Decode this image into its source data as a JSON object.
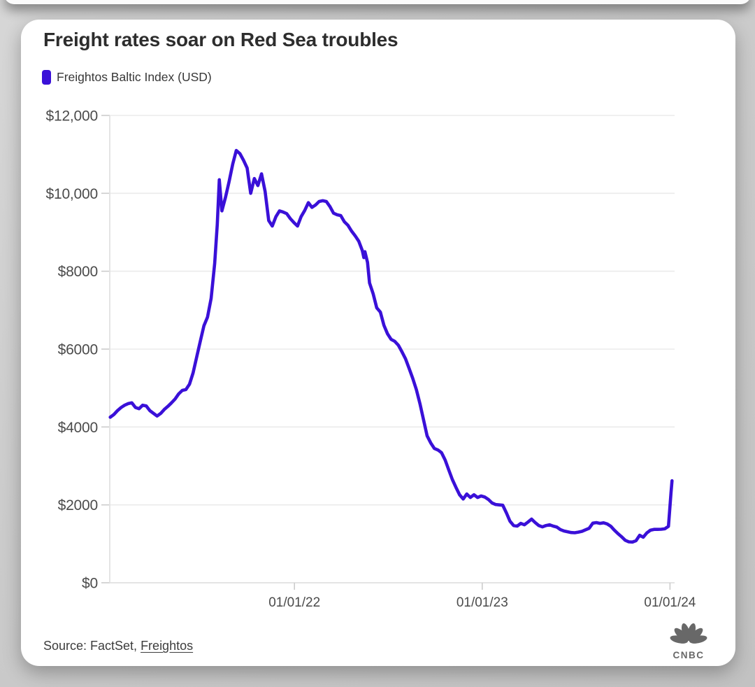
{
  "colors": {
    "accent": "#3A10D8",
    "grid": "#ebebeb",
    "axis": "#e2e2e2",
    "tick_label": "#4b4b4b",
    "title": "#2d2d2d"
  },
  "card": {
    "title": "Freight rates soar on Red Sea troubles",
    "legend": {
      "label": "Freightos Baltic Index (USD)",
      "swatch_color": "#3A10D8"
    },
    "source": {
      "text": "Source: FactSet, ",
      "link_label": "Freightos"
    },
    "logo_text": "CNBC"
  },
  "chart_data": {
    "type": "line",
    "title": "Freight rates soar on Red Sea troubles",
    "series_name": "Freightos Baltic Index (USD)",
    "line_color": "#3A10D8",
    "xlabel": "",
    "ylabel": "",
    "grid": true,
    "legend_position": "top-left",
    "ylim": [
      0,
      12000
    ],
    "x_domain": [
      "2021-01-07",
      "2024-01-10"
    ],
    "y_ticks": [
      {
        "value": 12000,
        "label": "$12,000"
      },
      {
        "value": 10000,
        "label": "$10,000"
      },
      {
        "value": 8000,
        "label": "$8000"
      },
      {
        "value": 6000,
        "label": "$6000"
      },
      {
        "value": 4000,
        "label": "$4000"
      },
      {
        "value": 2000,
        "label": "$2000"
      },
      {
        "value": 0,
        "label": "$0"
      }
    ],
    "x_ticks": [
      {
        "date": "2022-01-01",
        "label": "01/01/22"
      },
      {
        "date": "2023-01-01",
        "label": "01/01/23"
      },
      {
        "date": "2024-01-01",
        "label": "01/01/24"
      }
    ],
    "points": [
      [
        "2021-01-08",
        4250
      ],
      [
        "2021-01-15",
        4320
      ],
      [
        "2021-01-22",
        4420
      ],
      [
        "2021-01-29",
        4500
      ],
      [
        "2021-02-05",
        4560
      ],
      [
        "2021-02-12",
        4600
      ],
      [
        "2021-02-19",
        4620
      ],
      [
        "2021-02-26",
        4500
      ],
      [
        "2021-03-05",
        4470
      ],
      [
        "2021-03-12",
        4560
      ],
      [
        "2021-03-19",
        4540
      ],
      [
        "2021-03-26",
        4420
      ],
      [
        "2021-04-02",
        4350
      ],
      [
        "2021-04-09",
        4280
      ],
      [
        "2021-04-16",
        4350
      ],
      [
        "2021-04-23",
        4450
      ],
      [
        "2021-04-30",
        4530
      ],
      [
        "2021-05-07",
        4620
      ],
      [
        "2021-05-14",
        4720
      ],
      [
        "2021-05-21",
        4850
      ],
      [
        "2021-05-28",
        4940
      ],
      [
        "2021-06-04",
        4960
      ],
      [
        "2021-06-11",
        5100
      ],
      [
        "2021-06-18",
        5390
      ],
      [
        "2021-06-25",
        5800
      ],
      [
        "2021-07-02",
        6200
      ],
      [
        "2021-07-09",
        6600
      ],
      [
        "2021-07-16",
        6820
      ],
      [
        "2021-07-23",
        7300
      ],
      [
        "2021-07-30",
        8200
      ],
      [
        "2021-08-04",
        9200
      ],
      [
        "2021-08-08",
        10350
      ],
      [
        "2021-08-13",
        9550
      ],
      [
        "2021-08-20",
        9900
      ],
      [
        "2021-08-27",
        10300
      ],
      [
        "2021-09-03",
        10750
      ],
      [
        "2021-09-10",
        11100
      ],
      [
        "2021-09-17",
        11020
      ],
      [
        "2021-09-24",
        10850
      ],
      [
        "2021-10-01",
        10650
      ],
      [
        "2021-10-08",
        10000
      ],
      [
        "2021-10-15",
        10380
      ],
      [
        "2021-10-22",
        10200
      ],
      [
        "2021-10-29",
        10500
      ],
      [
        "2021-11-05",
        10050
      ],
      [
        "2021-11-12",
        9300
      ],
      [
        "2021-11-19",
        9160
      ],
      [
        "2021-11-26",
        9400
      ],
      [
        "2021-12-03",
        9550
      ],
      [
        "2021-12-10",
        9520
      ],
      [
        "2021-12-17",
        9480
      ],
      [
        "2021-12-24",
        9350
      ],
      [
        "2021-12-31",
        9250
      ],
      [
        "2022-01-07",
        9160
      ],
      [
        "2022-01-14",
        9400
      ],
      [
        "2022-01-21",
        9560
      ],
      [
        "2022-01-28",
        9760
      ],
      [
        "2022-02-04",
        9640
      ],
      [
        "2022-02-11",
        9700
      ],
      [
        "2022-02-18",
        9790
      ],
      [
        "2022-02-25",
        9810
      ],
      [
        "2022-03-04",
        9790
      ],
      [
        "2022-03-11",
        9660
      ],
      [
        "2022-03-18",
        9490
      ],
      [
        "2022-03-25",
        9450
      ],
      [
        "2022-04-01",
        9430
      ],
      [
        "2022-04-08",
        9270
      ],
      [
        "2022-04-15",
        9180
      ],
      [
        "2022-04-22",
        9030
      ],
      [
        "2022-04-29",
        8910
      ],
      [
        "2022-05-06",
        8770
      ],
      [
        "2022-05-13",
        8530
      ],
      [
        "2022-05-16",
        8350
      ],
      [
        "2022-05-18",
        8500
      ],
      [
        "2022-05-23",
        8230
      ],
      [
        "2022-05-27",
        7700
      ],
      [
        "2022-06-03",
        7420
      ],
      [
        "2022-06-10",
        7060
      ],
      [
        "2022-06-17",
        6950
      ],
      [
        "2022-06-24",
        6610
      ],
      [
        "2022-07-01",
        6390
      ],
      [
        "2022-07-08",
        6250
      ],
      [
        "2022-07-15",
        6200
      ],
      [
        "2022-07-22",
        6100
      ],
      [
        "2022-07-29",
        5930
      ],
      [
        "2022-08-05",
        5750
      ],
      [
        "2022-08-12",
        5500
      ],
      [
        "2022-08-19",
        5250
      ],
      [
        "2022-08-26",
        4960
      ],
      [
        "2022-09-02",
        4600
      ],
      [
        "2022-09-09",
        4180
      ],
      [
        "2022-09-16",
        3770
      ],
      [
        "2022-09-23",
        3590
      ],
      [
        "2022-09-30",
        3450
      ],
      [
        "2022-10-07",
        3410
      ],
      [
        "2022-10-14",
        3340
      ],
      [
        "2022-10-21",
        3150
      ],
      [
        "2022-10-28",
        2900
      ],
      [
        "2022-11-04",
        2650
      ],
      [
        "2022-11-11",
        2450
      ],
      [
        "2022-11-18",
        2260
      ],
      [
        "2022-11-25",
        2150
      ],
      [
        "2022-12-02",
        2280
      ],
      [
        "2022-12-09",
        2190
      ],
      [
        "2022-12-16",
        2260
      ],
      [
        "2022-12-23",
        2190
      ],
      [
        "2022-12-30",
        2230
      ],
      [
        "2023-01-06",
        2200
      ],
      [
        "2023-01-13",
        2140
      ],
      [
        "2023-01-20",
        2050
      ],
      [
        "2023-01-27",
        2010
      ],
      [
        "2023-02-03",
        2000
      ],
      [
        "2023-02-10",
        1990
      ],
      [
        "2023-02-17",
        1795
      ],
      [
        "2023-02-24",
        1580
      ],
      [
        "2023-03-03",
        1470
      ],
      [
        "2023-03-10",
        1455
      ],
      [
        "2023-03-17",
        1525
      ],
      [
        "2023-03-24",
        1490
      ],
      [
        "2023-03-31",
        1560
      ],
      [
        "2023-04-07",
        1635
      ],
      [
        "2023-04-14",
        1545
      ],
      [
        "2023-04-21",
        1470
      ],
      [
        "2023-04-28",
        1435
      ],
      [
        "2023-05-05",
        1470
      ],
      [
        "2023-05-12",
        1490
      ],
      [
        "2023-05-19",
        1455
      ],
      [
        "2023-05-26",
        1430
      ],
      [
        "2023-06-02",
        1365
      ],
      [
        "2023-06-09",
        1330
      ],
      [
        "2023-06-16",
        1310
      ],
      [
        "2023-06-23",
        1290
      ],
      [
        "2023-06-30",
        1285
      ],
      [
        "2023-07-07",
        1300
      ],
      [
        "2023-07-14",
        1320
      ],
      [
        "2023-07-21",
        1360
      ],
      [
        "2023-07-28",
        1400
      ],
      [
        "2023-08-04",
        1530
      ],
      [
        "2023-08-11",
        1545
      ],
      [
        "2023-08-18",
        1525
      ],
      [
        "2023-08-25",
        1540
      ],
      [
        "2023-09-01",
        1510
      ],
      [
        "2023-09-08",
        1450
      ],
      [
        "2023-09-15",
        1350
      ],
      [
        "2023-09-22",
        1260
      ],
      [
        "2023-09-29",
        1180
      ],
      [
        "2023-10-06",
        1090
      ],
      [
        "2023-10-13",
        1050
      ],
      [
        "2023-10-20",
        1045
      ],
      [
        "2023-10-27",
        1080
      ],
      [
        "2023-11-03",
        1220
      ],
      [
        "2023-11-10",
        1170
      ],
      [
        "2023-11-17",
        1280
      ],
      [
        "2023-11-24",
        1350
      ],
      [
        "2023-12-01",
        1370
      ],
      [
        "2023-12-08",
        1370
      ],
      [
        "2023-12-15",
        1375
      ],
      [
        "2023-12-22",
        1385
      ],
      [
        "2023-12-29",
        1450
      ],
      [
        "2024-01-03",
        2300
      ],
      [
        "2024-01-05",
        2620
      ]
    ]
  }
}
